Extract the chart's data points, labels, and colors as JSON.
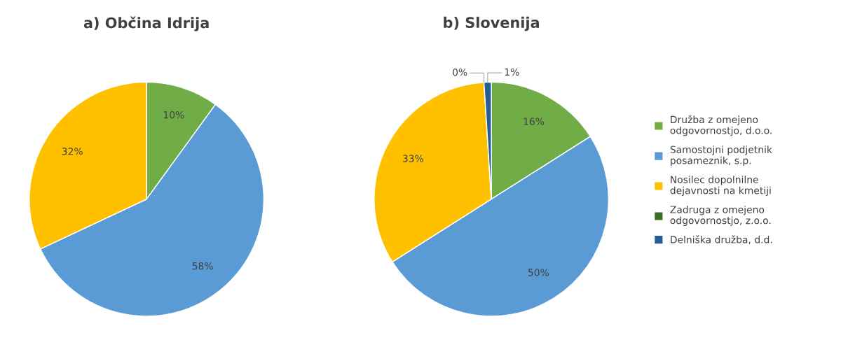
{
  "chart_data": [
    {
      "type": "pie",
      "title": "a) Občina Idrija",
      "categories": [
        null,
        null,
        null
      ],
      "values": [
        10,
        58,
        32
      ],
      "colors": [
        "#70ad47",
        "#5b9bd5",
        "#ffc000"
      ],
      "value_labels": [
        "10%",
        "58%",
        "32%"
      ],
      "legend": false
    },
    {
      "type": "pie",
      "title": "b) Slovenija",
      "categories": [
        "Družba z omejeno odgovornostjo, d.o.o.",
        "Samostojni podjetnik posameznik, s.p.",
        "Nosilec dopolnilne dejavnosti na kmetiji",
        "Zadruga z omejeno odgovornostjo, z.o.o.",
        "Delniška družba, d.d."
      ],
      "values": [
        16,
        50,
        33,
        0,
        1
      ],
      "colors": [
        "#70ad47",
        "#5b9bd5",
        "#ffc000",
        "#3b6e22",
        "#255e91"
      ],
      "value_labels": [
        "16%",
        "50%",
        "33%",
        "0%",
        "1%"
      ],
      "legend": "right"
    }
  ]
}
